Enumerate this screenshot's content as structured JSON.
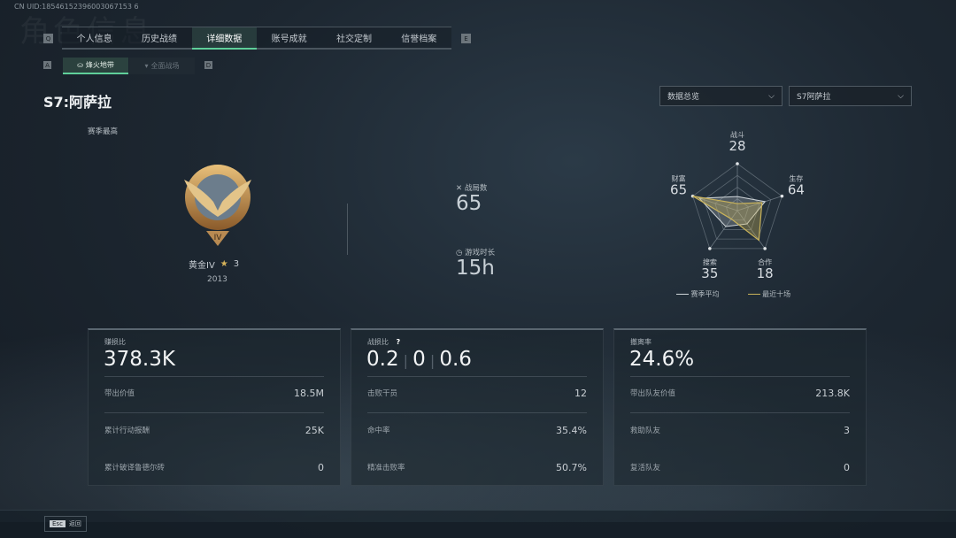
{
  "uid": "CN UID:18546152396003067153 6",
  "header_title": "角色信息",
  "tabs": [
    {
      "label": "个人信息"
    },
    {
      "label": "历史战绩"
    },
    {
      "label": "详细数据",
      "active": true
    },
    {
      "label": "账号成就"
    },
    {
      "label": "社交定制"
    },
    {
      "label": "信誉档案"
    }
  ],
  "tab_keys": {
    "left": "Q",
    "right": "E"
  },
  "subtabs": [
    {
      "label": "烽火地带",
      "active": true
    },
    {
      "label": "全面战场"
    }
  ],
  "subtab_keys": {
    "left": "A",
    "right": "D"
  },
  "season_title": "S7:阿萨拉",
  "dropdowns": [
    {
      "value": "数据总览"
    },
    {
      "value": "S7阿萨拉"
    }
  ],
  "rank": {
    "caption": "赛季最高",
    "name": "黄金IV",
    "stars": "3",
    "score": "2013",
    "emblem_numeral": "IV"
  },
  "summary": {
    "matches_label": "战局数",
    "matches": "65",
    "time_label": "游戏时长",
    "time": "15h"
  },
  "radar": {
    "axes": [
      {
        "label": "战斗",
        "value": "28"
      },
      {
        "label": "生存",
        "value": "64"
      },
      {
        "label": "合作",
        "value": "18"
      },
      {
        "label": "搜索",
        "value": "35"
      },
      {
        "label": "财富",
        "value": "65"
      }
    ],
    "legend": [
      {
        "name": "赛季平均",
        "color": "#d0d6da"
      },
      {
        "name": "最近十场",
        "color": "#c8b25a"
      }
    ],
    "season_avg": [
      0.3,
      0.62,
      0.35,
      0.42,
      0.85
    ],
    "recent10": [
      0.15,
      0.55,
      0.78,
      0.22,
      1.0
    ]
  },
  "cards": [
    {
      "label": "赚损比",
      "big": "378.3K",
      "rows": [
        {
          "k": "带出价值",
          "v": "18.5M"
        },
        {
          "k": "累计行动报酬",
          "v": "25K"
        },
        {
          "k": "累计破译鲁德尔砖",
          "v": "0"
        }
      ]
    },
    {
      "label": "战损比",
      "help": "?",
      "big_parts": [
        "0.2",
        "0",
        "0.6"
      ],
      "rows": [
        {
          "k": "击败干员",
          "v": "12"
        },
        {
          "k": "命中率",
          "v": "35.4%"
        },
        {
          "k": "精准击败率",
          "v": "50.7%"
        }
      ]
    },
    {
      "label": "撤离率",
      "big": "24.6%",
      "rows": [
        {
          "k": "带出队友价值",
          "v": "213.8K"
        },
        {
          "k": "救助队友",
          "v": "3"
        },
        {
          "k": "复活队友",
          "v": "0"
        }
      ]
    }
  ],
  "footer": {
    "key": "Esc",
    "label": "返回"
  },
  "colors": {
    "accent": "#5fcf9a",
    "gold": "#c8b25a"
  }
}
